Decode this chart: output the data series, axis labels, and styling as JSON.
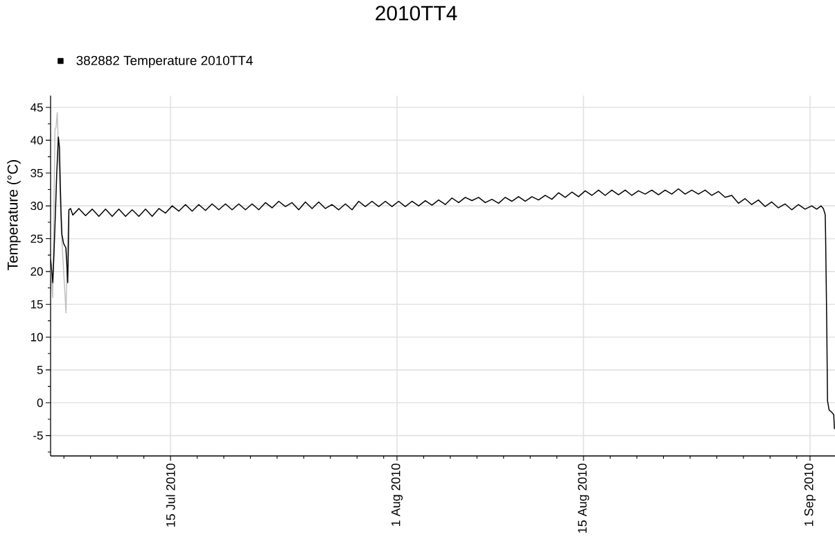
{
  "chart_data": {
    "type": "line",
    "title": "2010TT4",
    "ylabel": "Temperature (°C)",
    "series": [
      {
        "color": "#c0c0c0",
        "x": [
          "2010-07-06T00:00",
          "2010-07-06T03:45",
          "2010-07-06T08:00",
          "2010-07-06T09:40",
          "2010-07-06T12:00",
          "2010-07-06T19:10",
          "2010-07-07T03:50",
          "2010-07-07T06:00",
          "2010-07-07T09:00"
        ],
        "values": [
          21.9,
          16.0,
          41.7,
          41.9,
          44.2,
          26.5,
          13.7,
          23.0,
          29.4
        ]
      },
      {
        "name": "382882 Temperature 2010TT4",
        "color": "#000000",
        "x": [
          "2010-07-06T00:00",
          "2010-07-06T04:00",
          "2010-07-06T06:00",
          "2010-07-06T09:00",
          "2010-07-06T11:00",
          "2010-07-06T14:00",
          "2010-07-06T16:00",
          "2010-07-06T17:00",
          "2010-07-06T18:45",
          "2010-07-06T20:20",
          "2010-07-06T23:20",
          "2010-07-07T03:30",
          "2010-07-07T05:30",
          "2010-07-07T06:50",
          "2010-07-07T08:00",
          "2010-07-07T09:00",
          "2010-07-07T12:00",
          "2010-07-07T16:00",
          "2010-07-08T03:00",
          "2010-07-08T15:00",
          "2010-07-09T03:00",
          "2010-07-09T15:00",
          "2010-07-10T03:00",
          "2010-07-10T15:00",
          "2010-07-11T03:00",
          "2010-07-11T15:00",
          "2010-07-12T03:00",
          "2010-07-12T15:00",
          "2010-07-13T03:00",
          "2010-07-13T15:00",
          "2010-07-14T03:00",
          "2010-07-14T15:00",
          "2010-07-15T03:00",
          "2010-07-15T15:00",
          "2010-07-16T03:00",
          "2010-07-16T15:00",
          "2010-07-17T03:00",
          "2010-07-17T15:00",
          "2010-07-18T03:00",
          "2010-07-18T15:00",
          "2010-07-19T03:00",
          "2010-07-19T15:00",
          "2010-07-20T03:00",
          "2010-07-20T15:00",
          "2010-07-21T03:00",
          "2010-07-21T15:00",
          "2010-07-22T03:00",
          "2010-07-22T15:00",
          "2010-07-23T03:00",
          "2010-07-23T15:00",
          "2010-07-24T03:00",
          "2010-07-24T15:00",
          "2010-07-25T03:00",
          "2010-07-25T15:00",
          "2010-07-26T03:00",
          "2010-07-26T15:00",
          "2010-07-27T03:00",
          "2010-07-27T15:00",
          "2010-07-28T03:00",
          "2010-07-28T15:00",
          "2010-07-29T03:00",
          "2010-07-29T15:00",
          "2010-07-30T03:00",
          "2010-07-30T15:00",
          "2010-07-31T03:00",
          "2010-07-31T15:00",
          "2010-08-01T03:00",
          "2010-08-01T15:00",
          "2010-08-02T03:00",
          "2010-08-02T15:00",
          "2010-08-03T03:00",
          "2010-08-03T15:00",
          "2010-08-04T03:00",
          "2010-08-04T15:00",
          "2010-08-05T03:00",
          "2010-08-05T15:00",
          "2010-08-06T03:00",
          "2010-08-06T15:00",
          "2010-08-07T03:00",
          "2010-08-07T15:00",
          "2010-08-08T03:00",
          "2010-08-08T15:00",
          "2010-08-09T03:00",
          "2010-08-09T15:00",
          "2010-08-10T03:00",
          "2010-08-10T15:00",
          "2010-08-11T03:00",
          "2010-08-11T15:00",
          "2010-08-12T03:00",
          "2010-08-12T15:00",
          "2010-08-13T03:00",
          "2010-08-13T15:00",
          "2010-08-14T03:00",
          "2010-08-14T15:00",
          "2010-08-15T03:00",
          "2010-08-15T15:00",
          "2010-08-16T03:00",
          "2010-08-16T15:00",
          "2010-08-17T03:00",
          "2010-08-17T15:00",
          "2010-08-18T03:00",
          "2010-08-18T15:00",
          "2010-08-19T03:00",
          "2010-08-19T15:00",
          "2010-08-20T03:00",
          "2010-08-20T15:00",
          "2010-08-21T03:00",
          "2010-08-21T15:00",
          "2010-08-22T03:00",
          "2010-08-22T15:00",
          "2010-08-23T03:00",
          "2010-08-23T15:00",
          "2010-08-24T03:00",
          "2010-08-24T15:00",
          "2010-08-25T03:00",
          "2010-08-25T15:00",
          "2010-08-26T03:00",
          "2010-08-26T15:00",
          "2010-08-27T03:00",
          "2010-08-27T15:00",
          "2010-08-28T03:00",
          "2010-08-28T15:00",
          "2010-08-29T03:00",
          "2010-08-29T15:00",
          "2010-08-30T03:00",
          "2010-08-30T15:00",
          "2010-08-31T03:00",
          "2010-08-31T15:00",
          "2010-09-01T03:00",
          "2010-09-01T12:00",
          "2010-09-01T20:00",
          "2010-09-02T00:00",
          "2010-09-02T03:20",
          "2010-09-02T04:00",
          "2010-09-02T06:10",
          "2010-09-02T07:30",
          "2010-09-02T10:20",
          "2010-09-02T14:30",
          "2010-09-02T18:40",
          "2010-09-02T20:00"
        ],
        "values": [
          21.9,
          18.3,
          22.5,
          29.6,
          34.8,
          40.5,
          38.9,
          35.0,
          29.2,
          25.7,
          24.3,
          23.6,
          20.8,
          18.3,
          23.4,
          29.4,
          29.6,
          28.6,
          29.6,
          28.5,
          29.5,
          28.4,
          29.5,
          28.4,
          29.5,
          28.4,
          29.4,
          28.4,
          29.5,
          28.4,
          29.6,
          28.9,
          30.0,
          29.2,
          30.2,
          29.2,
          30.2,
          29.3,
          30.3,
          29.4,
          30.3,
          29.4,
          30.3,
          29.4,
          30.3,
          29.4,
          30.5,
          29.7,
          30.7,
          29.9,
          30.5,
          29.4,
          30.6,
          29.6,
          30.6,
          29.6,
          30.2,
          29.4,
          30.3,
          29.4,
          30.7,
          29.9,
          30.7,
          29.9,
          30.7,
          29.9,
          30.7,
          29.9,
          30.7,
          30.0,
          30.8,
          30.1,
          30.9,
          30.2,
          31.2,
          30.5,
          31.3,
          30.8,
          31.3,
          30.5,
          31.0,
          30.4,
          31.3,
          30.7,
          31.4,
          30.7,
          31.4,
          30.9,
          31.6,
          31.0,
          32.0,
          31.3,
          32.1,
          31.4,
          32.3,
          31.6,
          32.4,
          31.6,
          32.4,
          31.7,
          32.4,
          31.6,
          32.3,
          31.8,
          32.4,
          31.7,
          32.4,
          31.8,
          32.6,
          31.8,
          32.4,
          31.8,
          32.4,
          31.6,
          32.2,
          31.3,
          31.6,
          30.4,
          31.1,
          30.2,
          30.9,
          29.9,
          30.6,
          29.7,
          30.3,
          29.4,
          30.2,
          29.5,
          30.0,
          29.5,
          30.0,
          29.6,
          28.7,
          25.7,
          11.6,
          0.3,
          -1.1,
          -1.4,
          -1.8,
          -4.0
        ]
      }
    ],
    "xlim": [
      "2010-07-06T00:00",
      "2010-09-02T21:00"
    ],
    "xticks": [
      {
        "value": "2010-07-07",
        "label": null
      },
      {
        "value": "2010-07-09",
        "label": null
      },
      {
        "value": "2010-07-11",
        "label": null
      },
      {
        "value": "2010-07-13",
        "label": null
      },
      {
        "value": "2010-07-15",
        "label": "15 Jul 2010"
      },
      {
        "value": "2010-07-17",
        "label": null
      },
      {
        "value": "2010-07-19",
        "label": null
      },
      {
        "value": "2010-07-21",
        "label": null
      },
      {
        "value": "2010-07-23",
        "label": null
      },
      {
        "value": "2010-07-25",
        "label": null
      },
      {
        "value": "2010-07-27",
        "label": null
      },
      {
        "value": "2010-07-29",
        "label": null
      },
      {
        "value": "2010-07-31",
        "label": null
      },
      {
        "value": "2010-08-01",
        "label": "1 Aug 2010"
      },
      {
        "value": "2010-08-03",
        "label": null
      },
      {
        "value": "2010-08-05",
        "label": null
      },
      {
        "value": "2010-08-07",
        "label": null
      },
      {
        "value": "2010-08-09",
        "label": null
      },
      {
        "value": "2010-08-11",
        "label": null
      },
      {
        "value": "2010-08-13",
        "label": null
      },
      {
        "value": "2010-08-15",
        "label": "15 Aug 2010"
      },
      {
        "value": "2010-08-17",
        "label": null
      },
      {
        "value": "2010-08-19",
        "label": null
      },
      {
        "value": "2010-08-21",
        "label": null
      },
      {
        "value": "2010-08-23",
        "label": null
      },
      {
        "value": "2010-08-25",
        "label": null
      },
      {
        "value": "2010-08-27",
        "label": null
      },
      {
        "value": "2010-08-29",
        "label": null
      },
      {
        "value": "2010-08-31",
        "label": null
      },
      {
        "value": "2010-09-01",
        "label": "1 Sep 2010"
      }
    ],
    "ylim": [
      -8.1,
      46.8
    ],
    "yticks": [
      {
        "value": -7.5,
        "label": null
      },
      -5,
      {
        "value": -2.5,
        "label": null
      },
      0,
      {
        "value": 2.5,
        "label": null
      },
      5,
      {
        "value": 7.5,
        "label": null
      },
      10,
      {
        "value": 12.5,
        "label": null
      },
      15,
      {
        "value": 17.5,
        "label": null
      },
      20,
      {
        "value": 22.5,
        "label": null
      },
      25,
      {
        "value": 27.5,
        "label": null
      },
      30,
      {
        "value": 32.5,
        "label": null
      },
      35,
      {
        "value": 37.5,
        "label": null
      },
      40,
      {
        "value": 42.5,
        "label": null
      },
      45
    ],
    "grid": true,
    "legend": "top left"
  }
}
